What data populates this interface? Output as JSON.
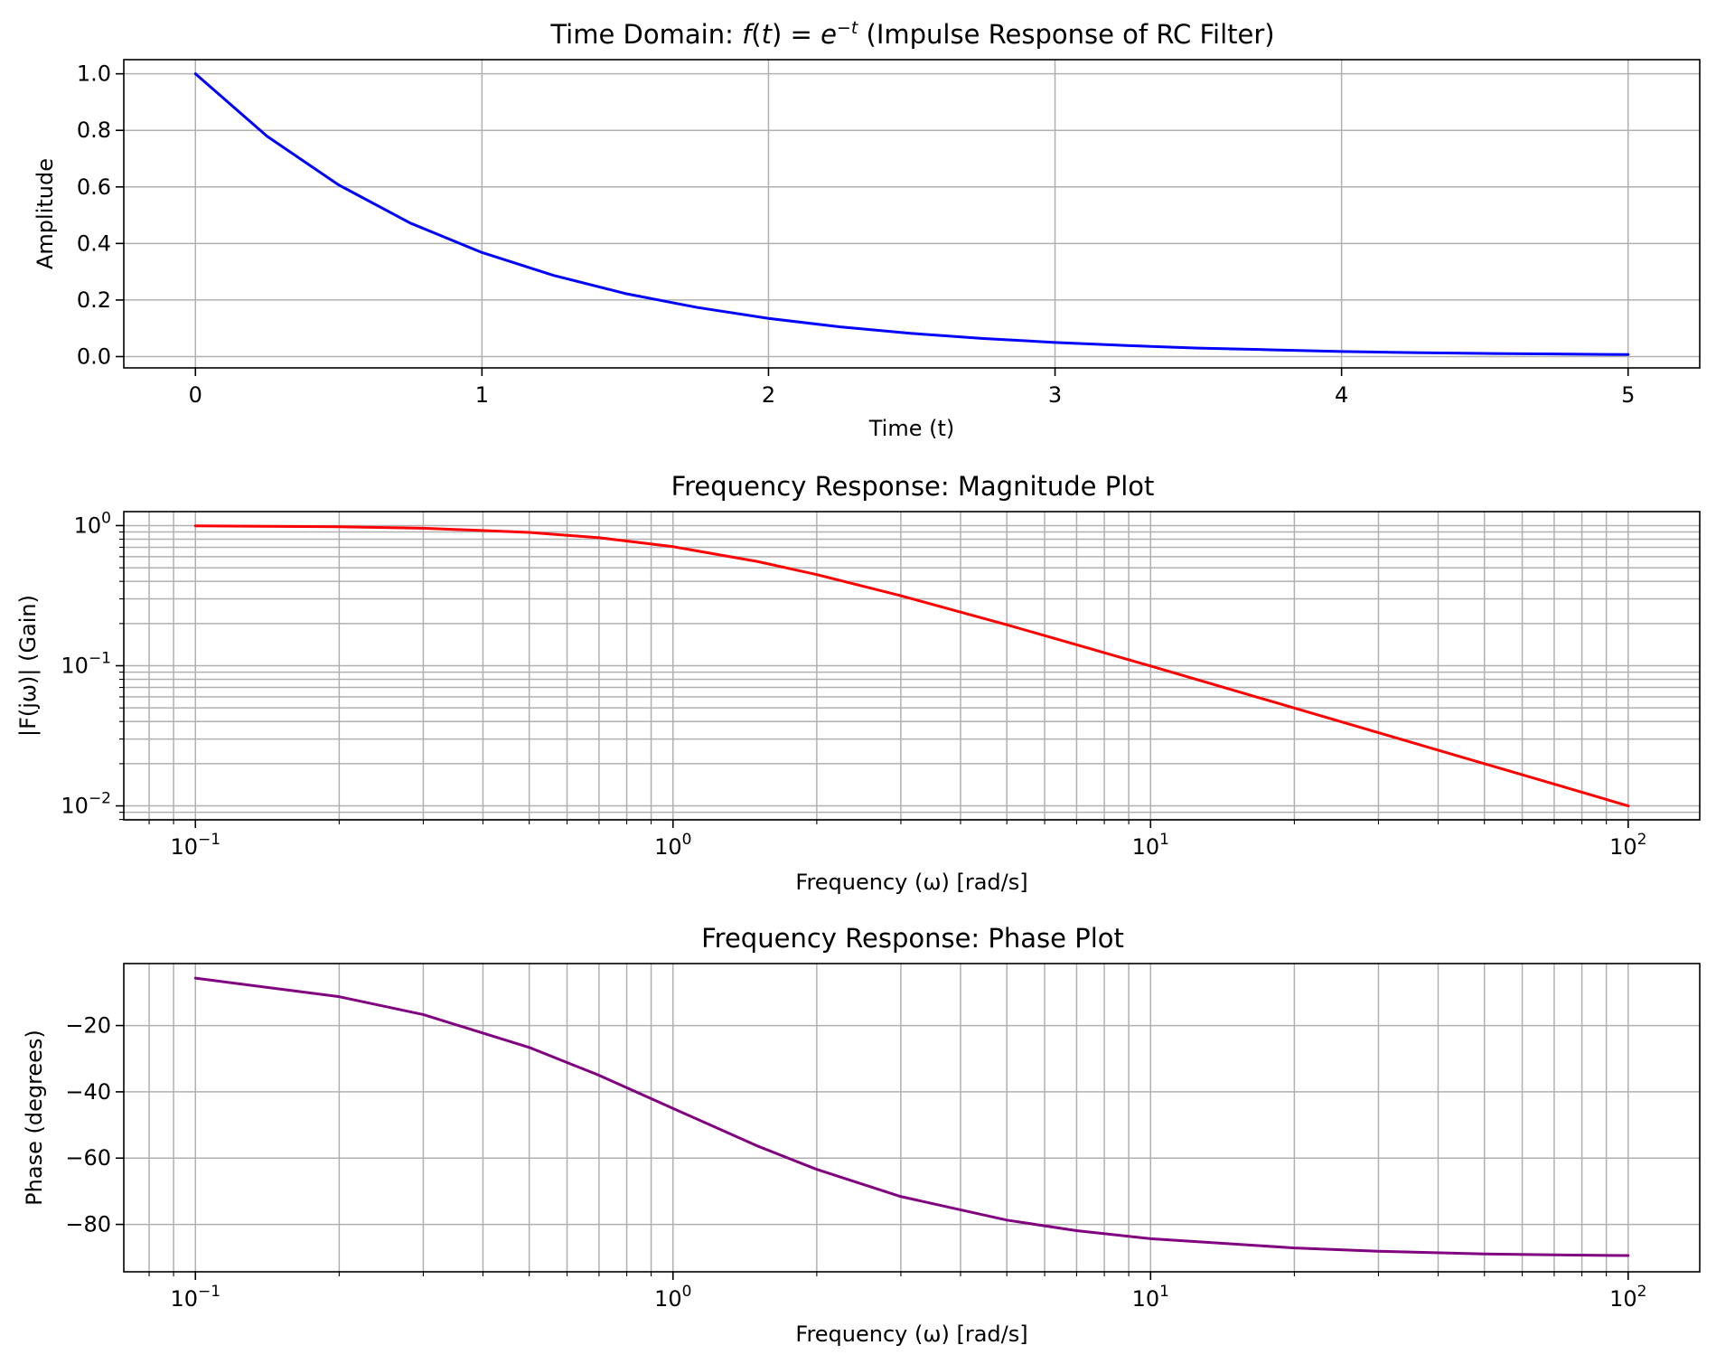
{
  "chart_data": [
    {
      "type": "line",
      "title": "Time Domain: f(t) = e^{−t} (Impulse Response of RC Filter)",
      "title_parts": {
        "prefix": "Time Domain: ",
        "f": "f",
        "open": "(",
        "t": "t",
        "close": ")",
        "eq": " = ",
        "e": "e",
        "exponent": "−t",
        "suffix": " (Impulse Response of RC Filter)"
      },
      "xlabel": "Time (t)",
      "ylabel": "Amplitude",
      "xscale": "linear",
      "yscale": "linear",
      "xlim": [
        -0.25,
        5.25
      ],
      "ylim": [
        -0.04,
        1.05
      ],
      "grid": true,
      "xticks": [
        0,
        1,
        2,
        3,
        4,
        5
      ],
      "xtick_labels": [
        "0",
        "1",
        "2",
        "3",
        "4",
        "5"
      ],
      "yticks": [
        0.0,
        0.2,
        0.4,
        0.6,
        0.8,
        1.0
      ],
      "ytick_labels": [
        "0.0",
        "0.2",
        "0.4",
        "0.6",
        "0.8",
        "1.0"
      ],
      "series": [
        {
          "color": "#0000ff",
          "x": [
            0,
            0.25,
            0.5,
            0.75,
            1.0,
            1.25,
            1.5,
            1.75,
            2.0,
            2.25,
            2.5,
            2.75,
            3.0,
            3.25,
            3.5,
            3.75,
            4.0,
            4.25,
            4.5,
            4.75,
            5.0
          ],
          "y": [
            1.0,
            0.779,
            0.607,
            0.472,
            0.368,
            0.287,
            0.223,
            0.174,
            0.135,
            0.105,
            0.082,
            0.064,
            0.05,
            0.039,
            0.03,
            0.024,
            0.018,
            0.014,
            0.011,
            0.009,
            0.007
          ]
        }
      ]
    },
    {
      "type": "line",
      "title": "Frequency Response: Magnitude Plot",
      "xlabel": "Frequency (ω) [rad/s]",
      "ylabel": "|F(jω)| (Gain)",
      "xscale": "log",
      "yscale": "log",
      "xlim": [
        0.0708,
        141.2
      ],
      "ylim": [
        0.00795,
        1.258
      ],
      "grid": true,
      "xticks": [
        0.1,
        1,
        10,
        100
      ],
      "xtick_labels": [
        [
          "10",
          "−1"
        ],
        [
          "10",
          "0"
        ],
        [
          "10",
          "1"
        ],
        [
          "10",
          "2"
        ]
      ],
      "yticks": [
        0.01,
        0.1,
        1
      ],
      "ytick_labels": [
        [
          "10",
          "−2"
        ],
        [
          "10",
          "−1"
        ],
        [
          "10",
          "0"
        ]
      ],
      "series": [
        {
          "color": "#ff0000",
          "x": [
            0.1,
            0.2,
            0.3,
            0.5,
            0.7,
            1.0,
            1.5,
            2.0,
            3.0,
            5.0,
            7.0,
            10.0,
            20.0,
            30.0,
            50.0,
            70.0,
            100.0
          ],
          "y": [
            0.995,
            0.981,
            0.958,
            0.894,
            0.819,
            0.707,
            0.555,
            0.447,
            0.316,
            0.196,
            0.141,
            0.0995,
            0.0499,
            0.0333,
            0.02,
            0.0143,
            0.01
          ]
        }
      ]
    },
    {
      "type": "line",
      "title": "Frequency Response: Phase Plot",
      "xlabel": "Frequency (ω) [rad/s]",
      "ylabel": "Phase (degrees)",
      "xscale": "log",
      "yscale": "linear",
      "xlim": [
        0.0708,
        141.2
      ],
      "ylim": [
        -94.3,
        -1.3
      ],
      "grid": true,
      "xticks": [
        0.1,
        1,
        10,
        100
      ],
      "xtick_labels": [
        [
          "10",
          "−1"
        ],
        [
          "10",
          "0"
        ],
        [
          "10",
          "1"
        ],
        [
          "10",
          "2"
        ]
      ],
      "yticks": [
        -80,
        -60,
        -40,
        -20
      ],
      "ytick_labels": [
        "−80",
        "−60",
        "−40",
        "−20"
      ],
      "series": [
        {
          "color": "#800080",
          "x": [
            0.1,
            0.2,
            0.3,
            0.5,
            0.7,
            1.0,
            1.5,
            2.0,
            3.0,
            5.0,
            7.0,
            10.0,
            20.0,
            30.0,
            50.0,
            70.0,
            100.0
          ],
          "y": [
            -5.7,
            -11.3,
            -16.7,
            -26.6,
            -35.0,
            -45.0,
            -56.3,
            -63.4,
            -71.6,
            -78.7,
            -81.9,
            -84.3,
            -87.1,
            -88.1,
            -88.9,
            -89.2,
            -89.4
          ]
        }
      ]
    }
  ]
}
